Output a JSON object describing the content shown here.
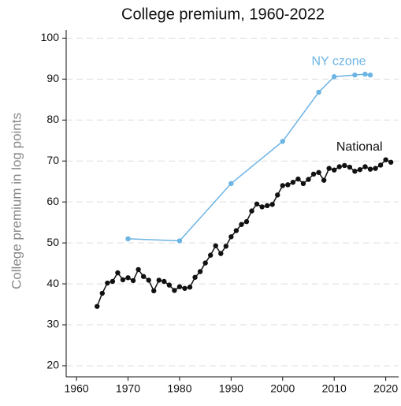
{
  "chart_data": {
    "type": "line",
    "title": "College premium, 1960-2022",
    "y_label": "College premium in log points",
    "xlim": [
      1958,
      2022.5
    ],
    "ylim": [
      17.3,
      102
    ],
    "xticks": [
      1960,
      1970,
      1980,
      1990,
      2000,
      2010,
      2020
    ],
    "yticks": [
      20,
      30,
      40,
      50,
      60,
      70,
      80,
      90,
      100
    ],
    "grid": true,
    "series": [
      {
        "name": "National",
        "color": "#111111",
        "x": [
          1964,
          1965,
          1966,
          1967,
          1968,
          1969,
          1970,
          1971,
          1972,
          1973,
          1974,
          1975,
          1976,
          1977,
          1978,
          1979,
          1980,
          1981,
          1982,
          1983,
          1984,
          1985,
          1986,
          1987,
          1988,
          1989,
          1990,
          1991,
          1992,
          1993,
          1994,
          1995,
          1996,
          1997,
          1998,
          1999,
          2000,
          2001,
          2002,
          2003,
          2004,
          2005,
          2006,
          2007,
          2008,
          2009,
          2010,
          2011,
          2012,
          2013,
          2014,
          2015,
          2016,
          2017,
          2018,
          2019,
          2020,
          2021
        ],
        "values": [
          34.5,
          37.7,
          40.2,
          40.6,
          42.7,
          41,
          41.5,
          40.8,
          43.5,
          41.8,
          40.9,
          38.3,
          40.9,
          40.6,
          39.7,
          38.4,
          39.3,
          38.9,
          39.2,
          41.6,
          43,
          45.1,
          47,
          49.3,
          47.4,
          49.2,
          51.5,
          53,
          54.5,
          55.2,
          57.8,
          59.5,
          58.8,
          59.1,
          59.4,
          61.7,
          64,
          64.2,
          64.8,
          65.6,
          64.5,
          65.5,
          66.8,
          67.2,
          65.3,
          68.2,
          67.8,
          68.6,
          68.9,
          68.5,
          67.5,
          67.9,
          68.6,
          68,
          68.2,
          69,
          70.3,
          69.7
        ]
      },
      {
        "name": "NY czone",
        "color": "#6cb4e4",
        "x": [
          1970,
          1980,
          1990,
          2000,
          2007,
          2010,
          2014,
          2016,
          2017
        ],
        "values": [
          51,
          50.5,
          64.5,
          74.8,
          86.8,
          90.6,
          91,
          91.2,
          91
        ]
      }
    ]
  }
}
